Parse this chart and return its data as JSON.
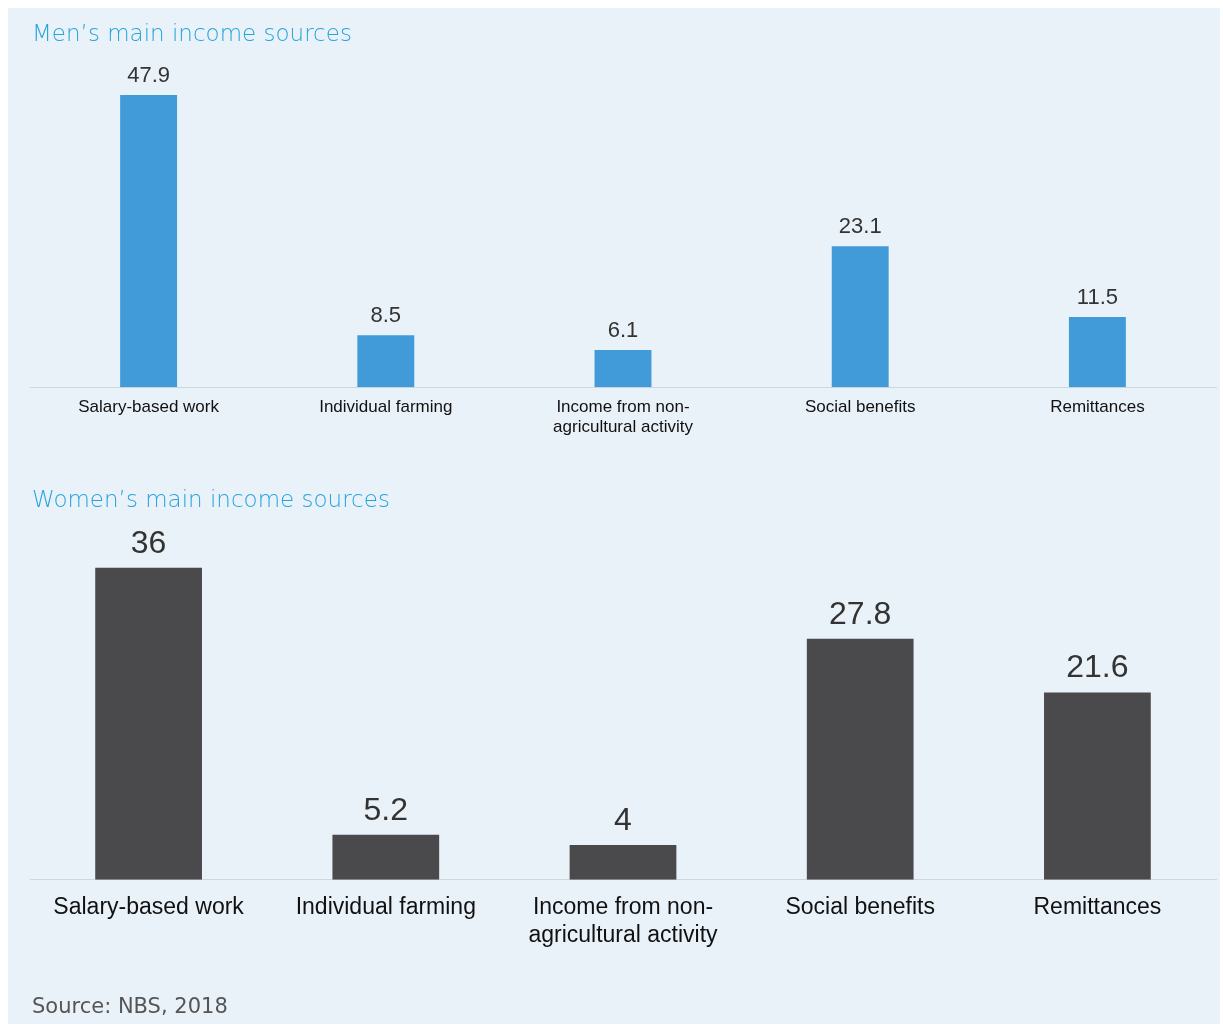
{
  "chart_data": [
    {
      "type": "bar",
      "title": "Men’s main income sources",
      "categories": [
        "Salary-based work",
        "Individual farming",
        "Income from non-agricultural activity",
        "Social benefits",
        "Remittances"
      ],
      "values": [
        47.9,
        8.5,
        6.1,
        23.1,
        11.5
      ],
      "color": "#419bd8",
      "data_labels": true,
      "grid": false,
      "legend": false
    },
    {
      "type": "bar",
      "title": "Women’s main income sources",
      "categories": [
        "Salary-based work",
        "Individual farming",
        "Income from non-agricultural activity",
        "Social benefits",
        "Remittances"
      ],
      "values": [
        36,
        5.2,
        4,
        27.8,
        21.6
      ],
      "color": "#4a4a4c",
      "data_labels": true,
      "grid": false,
      "legend": false,
      "annotations": [
        "Source: NBS, 2018"
      ]
    }
  ]
}
